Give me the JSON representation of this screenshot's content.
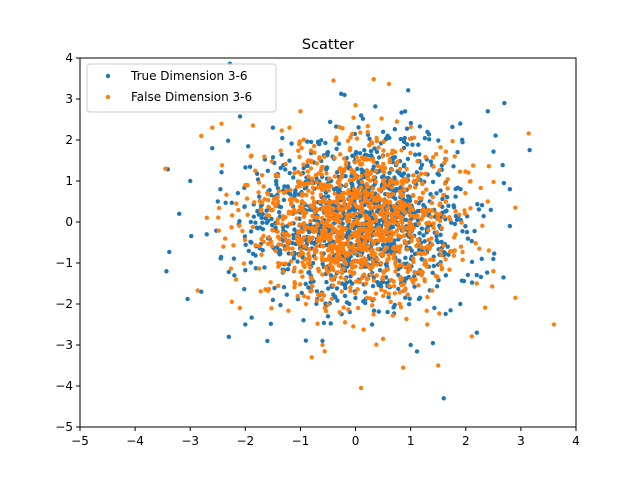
{
  "chart_data": {
    "type": "scatter",
    "title": "Scatter",
    "xlabel": "",
    "ylabel": "",
    "xlim": [
      -5,
      4
    ],
    "ylim": [
      -5,
      4
    ],
    "xticks": [
      "−5",
      "−4",
      "−3",
      "−2",
      "−1",
      "0",
      "1",
      "2",
      "3",
      "4"
    ],
    "yticks": [
      "−5",
      "−4",
      "−3",
      "−2",
      "−1",
      "0",
      "1",
      "2",
      "3",
      "4"
    ],
    "grid": false,
    "legend_position": "top-left",
    "series": [
      {
        "name": "True Dimension 3-6",
        "color": "#1f77b4",
        "points": [
          [
            -3.2,
            0.2
          ],
          [
            -3.0,
            1.0
          ],
          [
            -2.8,
            -1.7
          ],
          [
            -2.7,
            -0.3
          ],
          [
            -2.6,
            1.8
          ],
          [
            -2.3,
            -2.8
          ],
          [
            -2.0,
            -2.5
          ],
          [
            -1.6,
            -2.9
          ],
          [
            -1.5,
            2.3
          ],
          [
            -0.6,
            -2.9
          ],
          [
            -0.2,
            3.1
          ],
          [
            0.1,
            2.6
          ],
          [
            0.3,
            -2.5
          ],
          [
            0.9,
            2.7
          ],
          [
            1.0,
            -3.0
          ],
          [
            1.6,
            -4.3
          ],
          [
            1.9,
            2.4
          ],
          [
            2.2,
            -2.7
          ],
          [
            2.4,
            2.7
          ],
          [
            2.7,
            2.9
          ],
          [
            2.8,
            0.8
          ],
          [
            2.8,
            -0.1
          ],
          [
            -1.9,
            0.0
          ],
          [
            -1.5,
            -1.9
          ],
          [
            1.9,
            -2.0
          ],
          [
            2.5,
            -0.9
          ],
          [
            -2.5,
            0.5
          ],
          [
            -2.2,
            -1.3
          ],
          [
            0.5,
            2.2
          ],
          [
            -0.5,
            -2.3
          ]
        ]
      },
      {
        "name": "False Dimension 3-6",
        "color": "#ff7f0e",
        "points": [
          [
            -3.45,
            1.3
          ],
          [
            -2.8,
            2.1
          ],
          [
            -2.6,
            2.3
          ],
          [
            -0.4,
            3.45
          ],
          [
            0.0,
            2.85
          ],
          [
            0.1,
            -4.05
          ],
          [
            -0.6,
            -3.0
          ],
          [
            0.5,
            -2.85
          ],
          [
            1.5,
            -3.5
          ],
          [
            2.9,
            -1.85
          ],
          [
            2.9,
            0.35
          ],
          [
            3.6,
            -2.5
          ],
          [
            -2.1,
            -2.1
          ],
          [
            -1.9,
            1.6
          ],
          [
            -1.2,
            2.3
          ],
          [
            1.8,
            1.6
          ],
          [
            2.2,
            -1.5
          ],
          [
            -2.4,
            -0.6
          ],
          [
            0.8,
            -2.0
          ],
          [
            -0.9,
            -2.0
          ],
          [
            2.5,
            -1.2
          ],
          [
            -1.0,
            2.7
          ],
          [
            1.3,
            -2.5
          ],
          [
            -2.0,
            0.9
          ],
          [
            2.4,
            0.5
          ]
        ]
      }
    ],
    "cloud": {
      "points_per_series": 1200,
      "mean": [
        0,
        0
      ],
      "std": [
        1.0,
        1.0
      ]
    }
  }
}
